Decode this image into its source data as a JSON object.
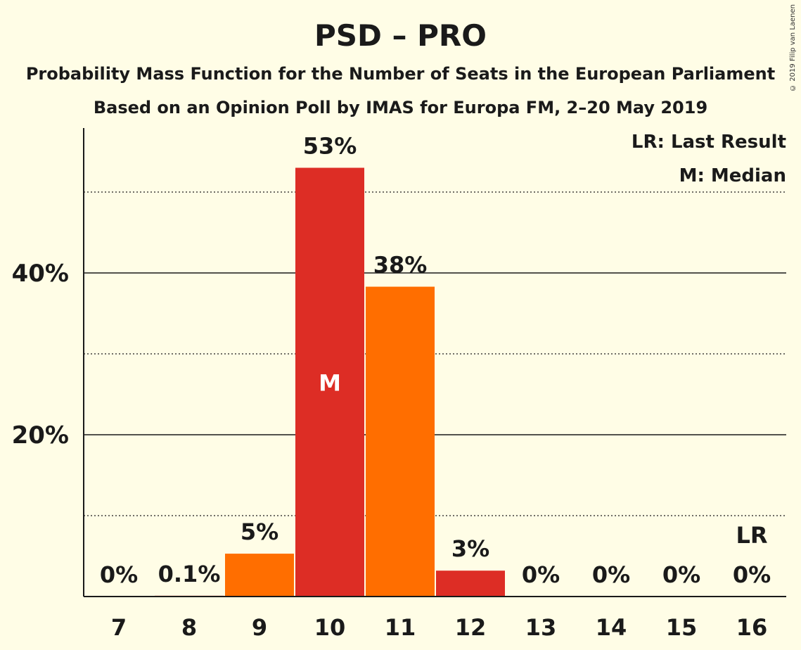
{
  "chart_data": {
    "type": "bar",
    "title": "PSD – PRO",
    "subtitle_1": "Probability Mass Function for the Number of Seats in the European Parliament",
    "subtitle_2": "Based on an Opinion Poll by IMAS for Europa FM, 2–20 May 2019",
    "copyright": "© 2019 Filip van Laenen",
    "categories": [
      "7",
      "8",
      "9",
      "10",
      "11",
      "12",
      "13",
      "14",
      "15",
      "16"
    ],
    "values": [
      0,
      0.1,
      5.3,
      53,
      38.3,
      3.2,
      0,
      0,
      0,
      0
    ],
    "value_labels": [
      "0%",
      "0.1%",
      "5%",
      "53%",
      "38%",
      "3%",
      "0%",
      "0%",
      "0%",
      "0%"
    ],
    "bar_colors": [
      "#ff6e00",
      "#dd2d25",
      "#ff6e00",
      "#dd2d25",
      "#ff6e00",
      "#dd2d25",
      "#ff6e00",
      "#dd2d25",
      "#ff6e00",
      "#dd2d25"
    ],
    "median_index": 3,
    "median_marker": "M",
    "last_result_index": 9,
    "last_result_marker": "LR",
    "ylim": [
      0,
      58
    ],
    "yticks": [
      {
        "value": 20,
        "label": "20%"
      },
      {
        "value": 40,
        "label": "40%"
      }
    ],
    "minor_grid": [
      10,
      30,
      50
    ],
    "legend": [
      "LR: Last Result",
      "M: Median"
    ],
    "legend_position": "top-right",
    "xlabel": "",
    "ylabel": ""
  }
}
